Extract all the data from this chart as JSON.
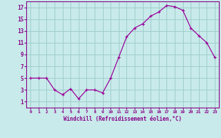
{
  "x": [
    0,
    1,
    2,
    3,
    4,
    5,
    6,
    7,
    8,
    9,
    10,
    11,
    12,
    13,
    14,
    15,
    16,
    17,
    18,
    19,
    20,
    21,
    22,
    23
  ],
  "y": [
    5,
    5,
    5,
    3,
    2.2,
    3.2,
    1.5,
    3,
    3,
    2.5,
    5,
    8.5,
    12,
    13.5,
    14.2,
    15.5,
    16.2,
    17.3,
    17.1,
    16.5,
    13.5,
    12.2,
    11,
    8.5
  ],
  "line_color": "#990099",
  "marker": "+",
  "bg_color": "#c8eaea",
  "grid_color": "#a0cccc",
  "xlabel": "Windchill (Refroidissement éolien,°C)",
  "xlim": [
    -0.5,
    23.5
  ],
  "ylim": [
    0,
    18
  ],
  "yticks": [
    1,
    3,
    5,
    7,
    9,
    11,
    13,
    15,
    17
  ],
  "xticks": [
    0,
    1,
    2,
    3,
    4,
    5,
    6,
    7,
    8,
    9,
    10,
    11,
    12,
    13,
    14,
    15,
    16,
    17,
    18,
    19,
    20,
    21,
    22,
    23
  ],
  "tick_color": "#880088",
  "label_color": "#880088"
}
